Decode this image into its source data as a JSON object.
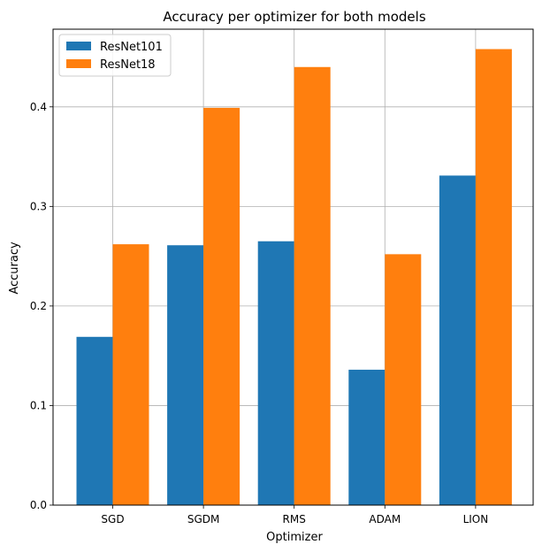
{
  "chart_data": {
    "type": "bar",
    "title": "Accuracy per optimizer for both models",
    "xlabel": "Optimizer",
    "ylabel": "Accuracy",
    "categories": [
      "SGD",
      "SGDM",
      "RMS",
      "ADAM",
      "LION"
    ],
    "series": [
      {
        "name": "ResNet101",
        "color": "#1f77b4",
        "values": [
          0.169,
          0.261,
          0.265,
          0.136,
          0.331
        ]
      },
      {
        "name": "ResNet18",
        "color": "#ff7f0e",
        "values": [
          0.262,
          0.399,
          0.44,
          0.252,
          0.458
        ]
      }
    ],
    "ylim": [
      0,
      0.478
    ],
    "yticks": [
      0.0,
      0.1,
      0.2,
      0.3,
      0.4
    ],
    "ytick_labels": [
      "0.0",
      "0.1",
      "0.2",
      "0.3",
      "0.4"
    ],
    "grid": true,
    "legend_position": "top-left"
  }
}
